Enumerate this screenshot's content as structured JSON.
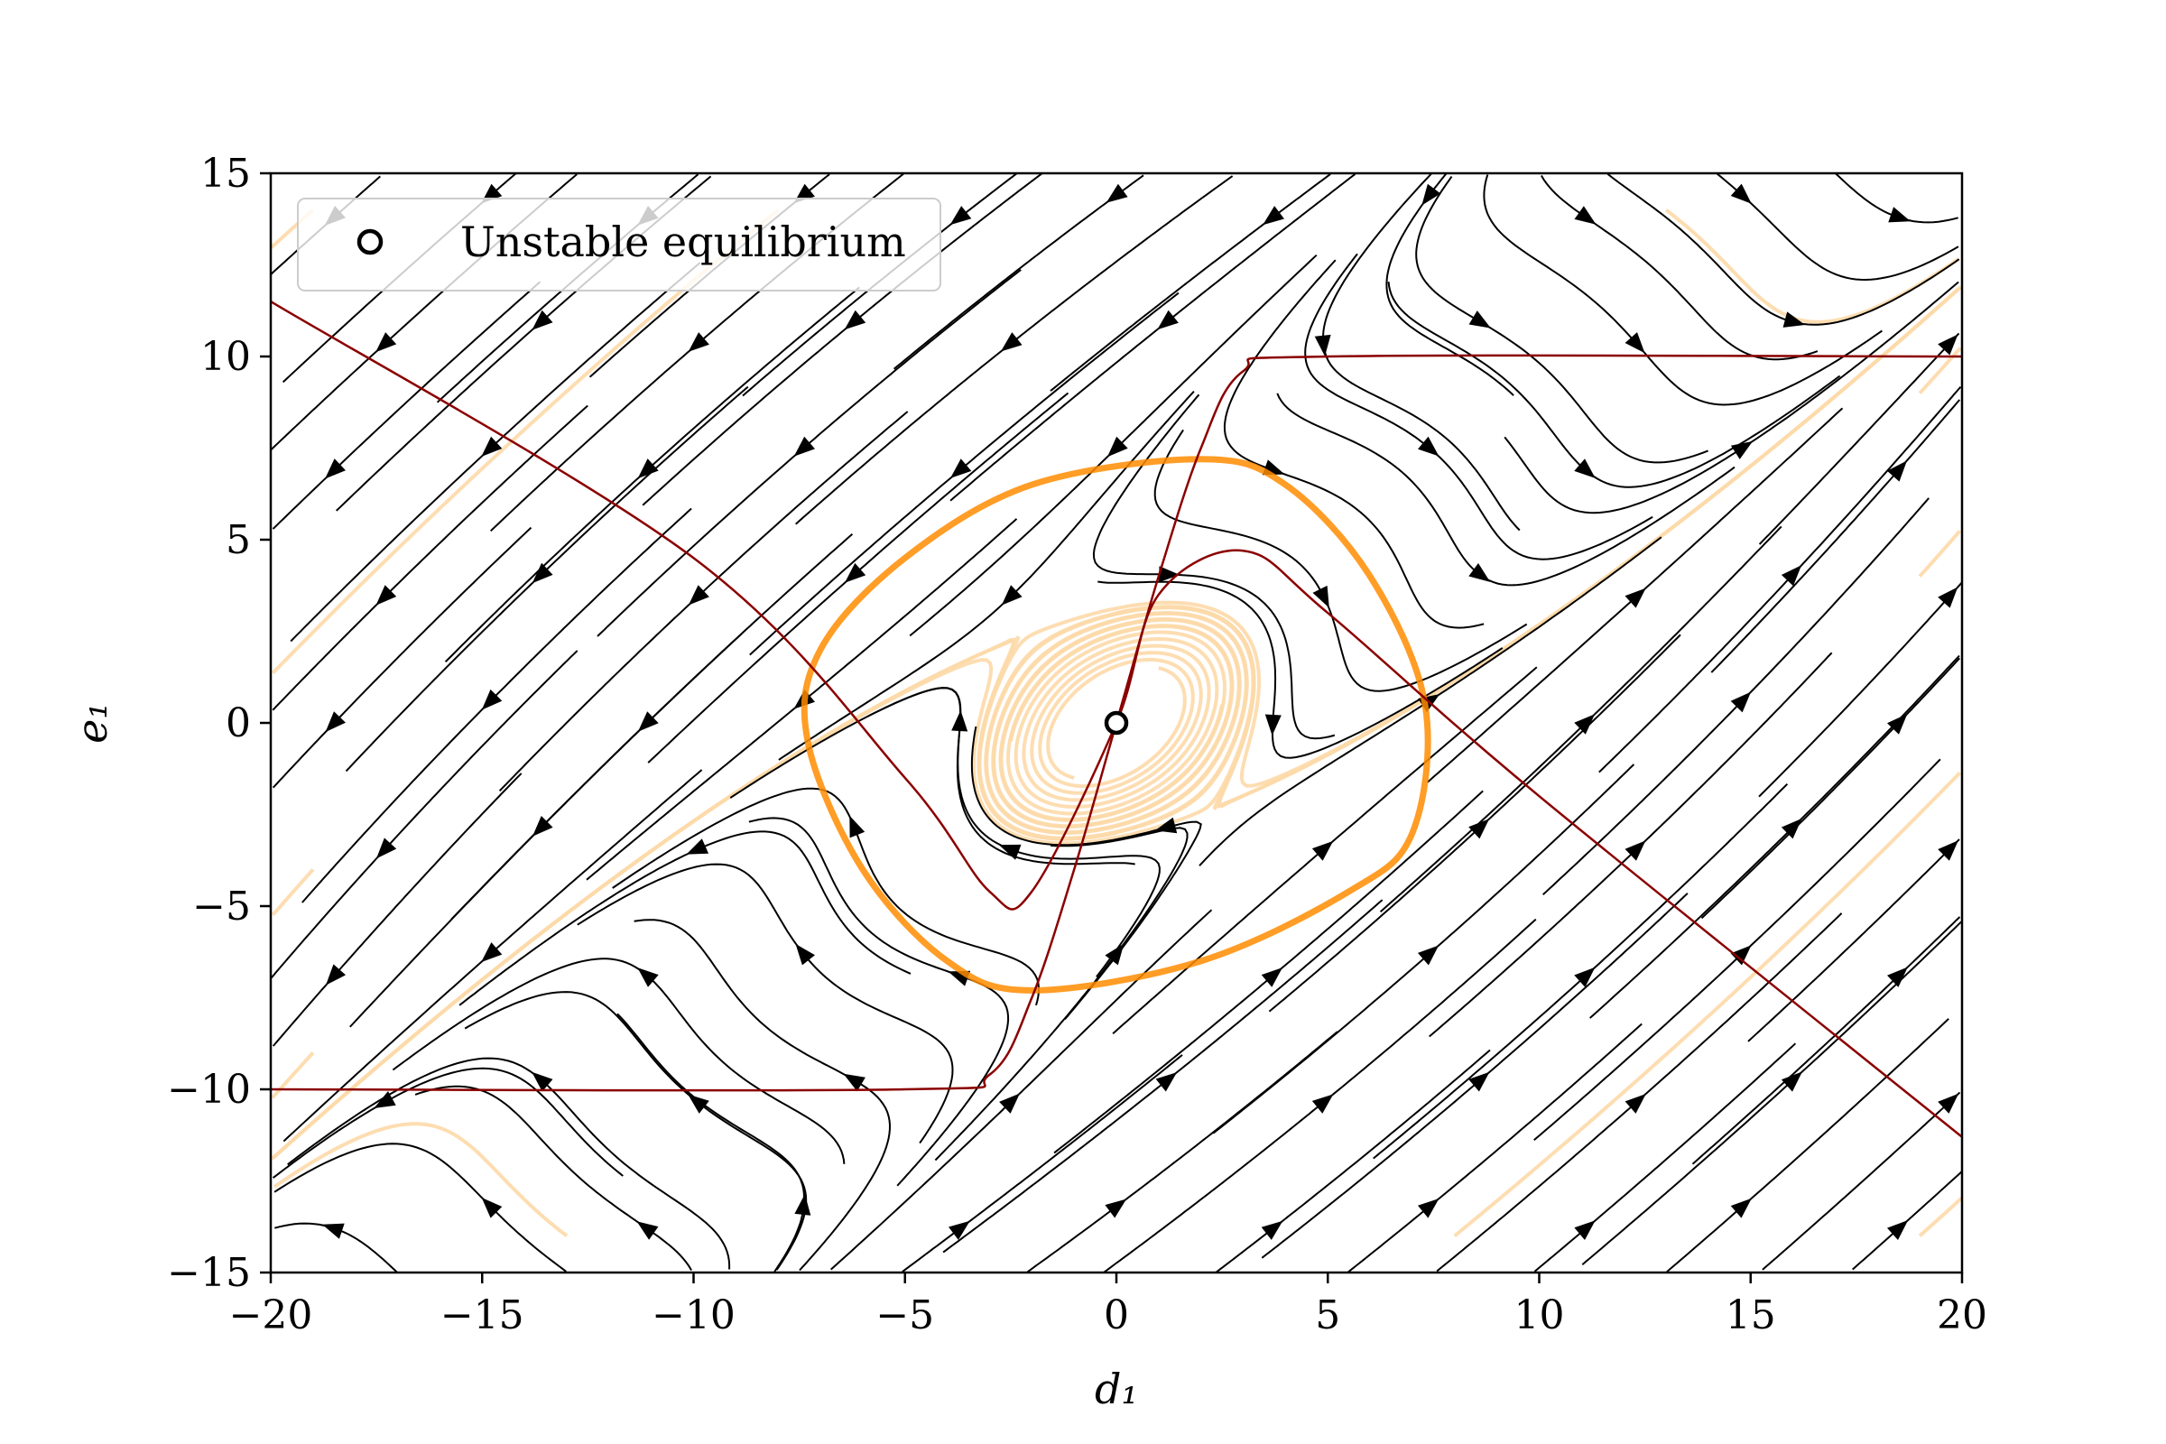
{
  "chart_data": {
    "type": "line",
    "title": "",
    "xlabel": "d₁",
    "ylabel": "e₁",
    "xlim": [
      -20,
      20
    ],
    "ylim": [
      -15,
      15
    ],
    "xticks": [
      -20,
      -15,
      -10,
      -5,
      0,
      5,
      10,
      15,
      20
    ],
    "yticks": [
      -15,
      -10,
      -5,
      0,
      5,
      10,
      15
    ],
    "xtick_labels": [
      "−20",
      "−15",
      "−10",
      "−5",
      "0",
      "5",
      "10",
      "15",
      "20"
    ],
    "ytick_labels": [
      "−15",
      "−10",
      "−5",
      "0",
      "5",
      "10",
      "15"
    ],
    "grid": false,
    "legend": {
      "position": "top-left",
      "entries": [
        {
          "label": "Unstable equilibrium"
        }
      ]
    },
    "equilibrium": {
      "x": 0,
      "y": 0
    },
    "nullclines": [
      {
        "points": [
          [
            -20,
            11.5
          ],
          [
            -10,
            4.5
          ],
          [
            -5,
            -1.5
          ],
          [
            -3,
            -4.6
          ],
          [
            -2,
            -4.6
          ],
          [
            0,
            0
          ],
          [
            1,
            3.5
          ],
          [
            3,
            4.7
          ],
          [
            5,
            3
          ],
          [
            10,
            -2
          ],
          [
            20,
            -11.3
          ]
        ]
      },
      {
        "points": [
          [
            -20,
            -10
          ],
          [
            -5,
            -10
          ],
          [
            -3,
            -9.6
          ],
          [
            -2,
            -7.5
          ],
          [
            -1,
            -4
          ],
          [
            0,
            0
          ],
          [
            1,
            4
          ],
          [
            2,
            7.5
          ],
          [
            3,
            9.6
          ],
          [
            5,
            10
          ],
          [
            20,
            10
          ]
        ]
      }
    ],
    "limit_cycle": {
      "points": [
        [
          2,
          7.2
        ],
        [
          4,
          6.5
        ],
        [
          6,
          4
        ],
        [
          7.3,
          0.5
        ],
        [
          7,
          -3
        ],
        [
          5.5,
          -4.6
        ],
        [
          2,
          -6.5
        ],
        [
          -2,
          -7.3
        ],
        [
          -4,
          -6.5
        ],
        [
          -6,
          -4
        ],
        [
          -7.3,
          -0.5
        ],
        [
          -7,
          2
        ],
        [
          -5,
          4.5
        ],
        [
          -2,
          6.5
        ]
      ]
    },
    "colors": {
      "streamline": "#000000",
      "nullcline": "#8b0000",
      "cycle": "#ff8c00",
      "orbit": "#fdd9a8"
    }
  }
}
